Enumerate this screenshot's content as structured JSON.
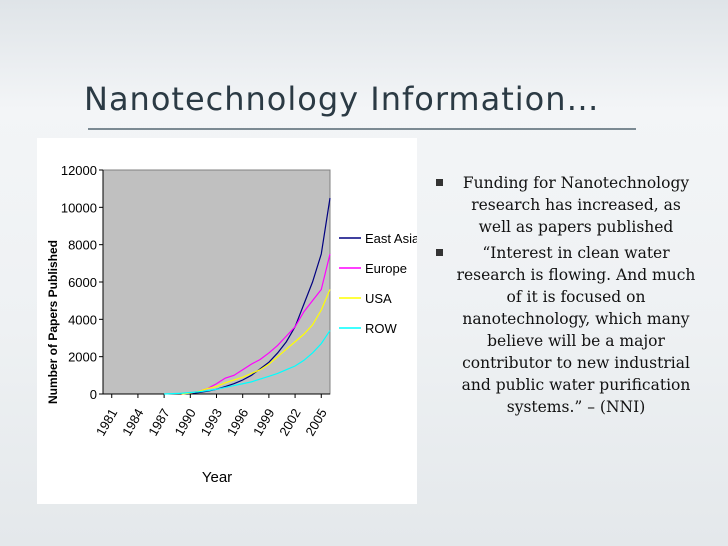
{
  "slide": {
    "title": "Nanotechnology Information…",
    "bullets": [
      "Funding for Nanotechnology research has increased, as well as papers published",
      "“Interest in clean water research is flowing. And much of it is focused on nanotechnology, which many believe will be a major contributor to new industrial and public water purification systems.” – (NNI)"
    ]
  },
  "chart_data": {
    "type": "line",
    "title": "",
    "xlabel": "Year",
    "ylabel": "Number of Papers Published",
    "xlim": [
      1980,
      2006
    ],
    "ylim": [
      0,
      12000
    ],
    "yticks": [
      0,
      2000,
      4000,
      6000,
      8000,
      10000,
      12000
    ],
    "ytick_labels": [
      "0",
      "2000",
      "4000",
      "6000",
      "8000",
      "10000",
      "12000"
    ],
    "xticks": [
      1981,
      1984,
      1987,
      1990,
      1993,
      1996,
      1999,
      2002,
      2005
    ],
    "xtick_labels": [
      "1981",
      "1984",
      "1987",
      "1990",
      "1993",
      "1996",
      "1999",
      "2002",
      "2005"
    ],
    "grid": false,
    "legend_position": "right",
    "plot_background": "#c0c0c0",
    "series": [
      {
        "name": "East Asia",
        "color": "#000080",
        "x": [
          1989,
          1990,
          1991,
          1992,
          1993,
          1994,
          1995,
          1996,
          1997,
          1998,
          1999,
          2000,
          2001,
          2002,
          2003,
          2004,
          2005,
          2006
        ],
        "y": [
          0,
          30,
          80,
          150,
          250,
          400,
          550,
          750,
          1000,
          1350,
          1700,
          2200,
          2800,
          3600,
          4800,
          6000,
          7500,
          10500
        ]
      },
      {
        "name": "Europe",
        "color": "#ff00ff",
        "x": [
          1989,
          1990,
          1991,
          1992,
          1993,
          1994,
          1995,
          1996,
          1997,
          1998,
          1999,
          2000,
          2001,
          2002,
          2003,
          2004,
          2005,
          2006
        ],
        "y": [
          0,
          60,
          150,
          300,
          550,
          850,
          1000,
          1300,
          1600,
          1850,
          2200,
          2600,
          3100,
          3600,
          4400,
          5000,
          5600,
          7500
        ]
      },
      {
        "name": "USA",
        "color": "#ffff00",
        "x": [
          1989,
          1990,
          1991,
          1992,
          1993,
          1994,
          1995,
          1996,
          1997,
          1998,
          1999,
          2000,
          2001,
          2002,
          2003,
          2004,
          2005,
          2006
        ],
        "y": [
          0,
          50,
          150,
          300,
          400,
          600,
          750,
          900,
          1100,
          1300,
          1600,
          2000,
          2400,
          2800,
          3200,
          3700,
          4500,
          5600
        ]
      },
      {
        "name": "ROW",
        "color": "#00ffff",
        "x": [
          1987,
          1988,
          1989,
          1990,
          1991,
          1992,
          1993,
          1994,
          1995,
          1996,
          1997,
          1998,
          1999,
          2000,
          2001,
          2002,
          2003,
          2004,
          2005,
          2006
        ],
        "y": [
          0,
          20,
          40,
          80,
          120,
          180,
          250,
          350,
          450,
          550,
          650,
          800,
          950,
          1100,
          1300,
          1500,
          1800,
          2200,
          2700,
          3400
        ]
      }
    ]
  }
}
